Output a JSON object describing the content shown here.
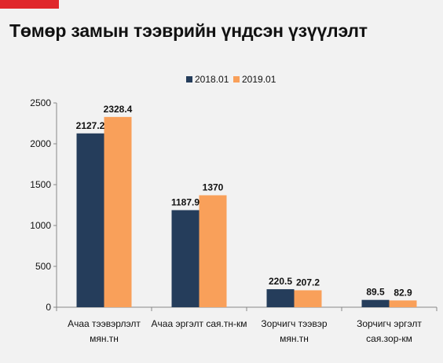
{
  "title": "Төмөр замын тээврийн үндсэн үзүүлэлт",
  "colors": {
    "accent": "#e0272b",
    "series_2018": "#253d5b",
    "series_2019": "#f9a05a"
  },
  "chart_data": {
    "type": "bar",
    "title": "Төмөр замын тээврийн үндсэн үзүүлэлт",
    "xlabel": "",
    "ylabel": "",
    "ylim": [
      0,
      2500
    ],
    "yticks": [
      0,
      500,
      1000,
      1500,
      2000,
      2500
    ],
    "grid": false,
    "legend": "top-center",
    "categories": [
      [
        "Ачаа тээвэрлэлт",
        "мян.тн"
      ],
      [
        "Ачаа эргэлт сая.тн-км"
      ],
      [
        "Зорчигч тээвэр",
        "мян.тн"
      ],
      [
        "Зорчигч эргэлт",
        "сая.зор-км"
      ]
    ],
    "series": [
      {
        "name": "2018.01",
        "color": "#253d5b",
        "values": [
          2127.2,
          1187.9,
          220.5,
          89.5
        ]
      },
      {
        "name": "2019.01",
        "color": "#f9a05a",
        "values": [
          2328.4,
          1370,
          207.2,
          82.9
        ]
      }
    ]
  }
}
